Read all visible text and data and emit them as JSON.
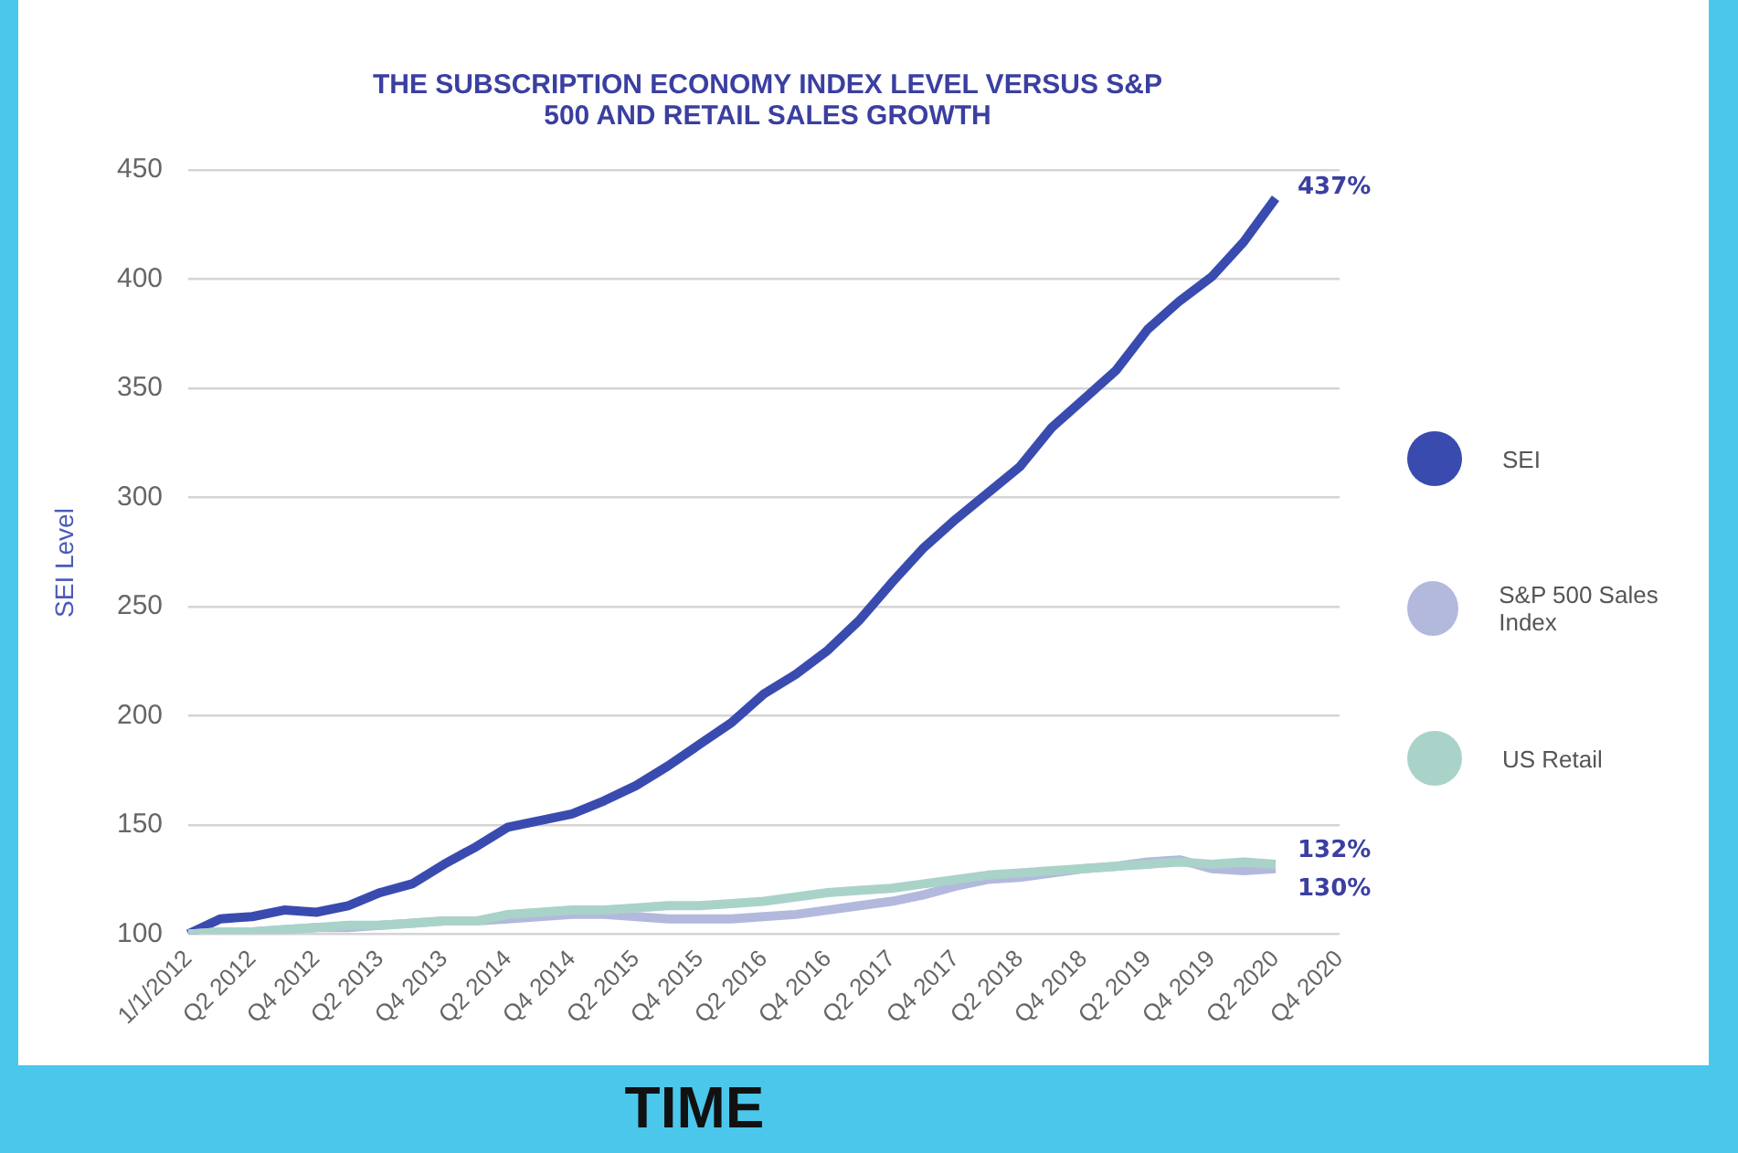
{
  "chart_data": {
    "type": "line",
    "title": "THE SUBSCRIPTION ECONOMY INDEX LEVEL VERSUS S&P 500 AND RETAIL SALES GROWTH",
    "xlabel": "TIME",
    "ylabel": "SEI Level",
    "categories": [
      "1/1/2012",
      null,
      "Q2 2012",
      null,
      "Q4 2012",
      null,
      "Q2 2013",
      null,
      "Q4 2013",
      null,
      "Q2 2014",
      null,
      "Q4 2014",
      null,
      "Q2 2015",
      null,
      "Q4 2015",
      null,
      "Q2 2016",
      null,
      "Q4 2016",
      null,
      "Q2 2017",
      null,
      "Q4 2017",
      null,
      "Q2 2018",
      null,
      "Q4 2018",
      null,
      "Q2 2019",
      null,
      "Q4 2019",
      null,
      "Q2 2020",
      null,
      "Q4 2020"
    ],
    "series": [
      {
        "name": "US Retail",
        "color": "#a9d3c9",
        "values": [
          100,
          101,
          101,
          102,
          103,
          104,
          104,
          105,
          106,
          106,
          109,
          110,
          111,
          111,
          112,
          113,
          113,
          114,
          115,
          117,
          119,
          120,
          121,
          123,
          125,
          127,
          128,
          129,
          130,
          131,
          132,
          133,
          132,
          133,
          132,
          null,
          null
        ]
      },
      {
        "name": "S&P 500 Sales Index",
        "color": "#b3b9dd",
        "values": [
          100,
          101,
          101,
          102,
          103,
          103,
          104,
          105,
          106,
          106,
          107,
          108,
          109,
          109,
          108,
          107,
          107,
          107,
          108,
          109,
          111,
          113,
          115,
          118,
          122,
          125,
          126,
          128,
          130,
          131,
          133,
          134,
          130,
          129,
          130,
          null,
          null
        ]
      },
      {
        "name": "SEI",
        "color": "#3a4bb0",
        "values": [
          100,
          107,
          108,
          111,
          110,
          113,
          119,
          123,
          132,
          140,
          149,
          152,
          155,
          161,
          168,
          177,
          187,
          197,
          210,
          219,
          230,
          244,
          261,
          277,
          290,
          302,
          314,
          332,
          345,
          358,
          377,
          390,
          401,
          417,
          437,
          null,
          null
        ]
      }
    ],
    "ylim": [
      100,
      450
    ],
    "yticks": [
      100,
      150,
      200,
      250,
      300,
      350,
      400,
      450
    ],
    "grid": "y",
    "legend": "right",
    "marker": "none",
    "line_style": "solid",
    "annotations": [
      {
        "text": "437%",
        "x": "Q2 2020",
        "y": 437
      },
      {
        "text": "132%",
        "x": "Q2 2020",
        "y": 132
      },
      {
        "text": "130%",
        "x": "Q2 2020",
        "y": 130
      }
    ]
  }
}
